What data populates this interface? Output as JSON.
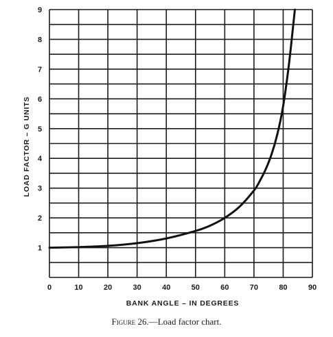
{
  "chart_data": {
    "type": "line",
    "title": "",
    "xlabel": "BANK ANGLE – IN DEGREES",
    "ylabel": "LOAD FACTOR – G UNITS",
    "xlim": [
      0,
      90
    ],
    "ylim": [
      0,
      9
    ],
    "x_ticks": [
      "0",
      "10",
      "20",
      "30",
      "40",
      "50",
      "60",
      "70",
      "80",
      "90"
    ],
    "y_ticks": [
      "1",
      "2",
      "3",
      "4",
      "5",
      "6",
      "7",
      "8",
      "9"
    ],
    "x_tick_values": [
      0,
      10,
      20,
      30,
      40,
      50,
      60,
      70,
      80,
      90
    ],
    "y_tick_values": [
      1,
      2,
      3,
      4,
      5,
      6,
      7,
      8,
      9
    ],
    "grid": true,
    "series": [
      {
        "color": "#111111",
        "x": [
          0,
          10,
          20,
          30,
          40,
          50,
          55,
          60,
          65,
          70,
          72,
          74,
          76,
          78,
          80,
          82,
          84
        ],
        "y": [
          1.0,
          1.02,
          1.06,
          1.15,
          1.31,
          1.56,
          1.74,
          2.0,
          2.37,
          2.92,
          3.24,
          3.63,
          4.13,
          4.81,
          5.76,
          7.19,
          9.0
        ]
      }
    ]
  },
  "caption": {
    "prefix": "Figure",
    "text": " 26.—Load factor chart."
  }
}
